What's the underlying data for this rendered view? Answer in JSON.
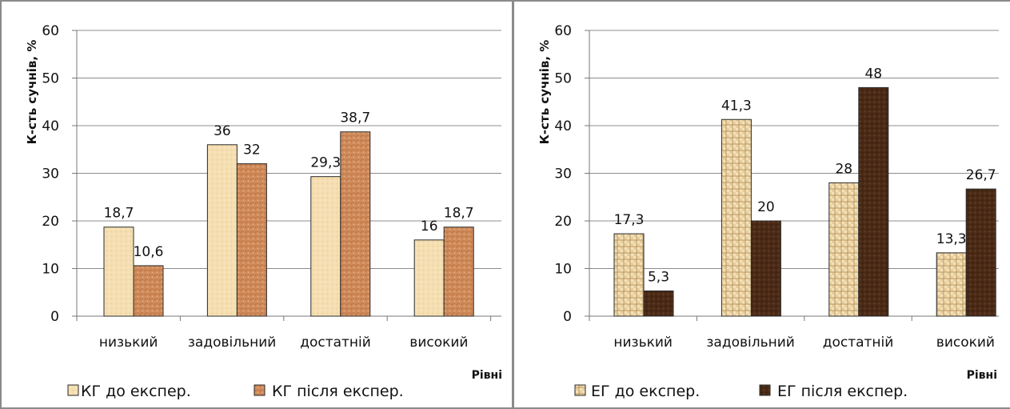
{
  "chart_data": [
    {
      "type": "bar",
      "title": "",
      "ylabel": "К-сть сучнів, %",
      "xlabel": "Рівні",
      "ylim": [
        0,
        60
      ],
      "yticks": [
        "0",
        "10",
        "20",
        "30",
        "40",
        "50",
        "60"
      ],
      "categories": [
        "низький",
        "задовільний",
        "достатній",
        "високий"
      ],
      "grid": true,
      "legend_position": "bottom",
      "series": [
        {
          "name": "КГ до експер.",
          "values": [
            18.7,
            36,
            29.3,
            16
          ],
          "labels": [
            "18,7",
            "36",
            "29,3",
            "16"
          ],
          "color": "#f3ddb0",
          "pattern": "light"
        },
        {
          "name": "КГ після експер.",
          "values": [
            10.6,
            32,
            38.7,
            18.7
          ],
          "labels": [
            "10,6",
            "32",
            "38,7",
            "18,7"
          ],
          "color": "#d18d5e",
          "pattern": "granite"
        }
      ]
    },
    {
      "type": "bar",
      "title": "",
      "ylabel": "К-сть сучнів, %",
      "xlabel": "Рівні",
      "ylim": [
        0,
        60
      ],
      "yticks": [
        "0",
        "10",
        "20",
        "30",
        "40",
        "50",
        "60"
      ],
      "categories": [
        "низький",
        "задовільний",
        "достатній",
        "високий"
      ],
      "grid": true,
      "legend_position": "bottom",
      "series": [
        {
          "name": "ЕГ до експер.",
          "values": [
            17.3,
            41.3,
            28,
            13.3
          ],
          "labels": [
            "17,3",
            "41,3",
            "28",
            "13,3"
          ],
          "color": "#e3c896",
          "pattern": "weave"
        },
        {
          "name": "ЕГ після експер.",
          "values": [
            5.3,
            20,
            48,
            26.7
          ],
          "labels": [
            "5,3",
            "20",
            "48",
            "26,7"
          ],
          "color": "#4a2b18",
          "pattern": "dark"
        }
      ]
    }
  ]
}
